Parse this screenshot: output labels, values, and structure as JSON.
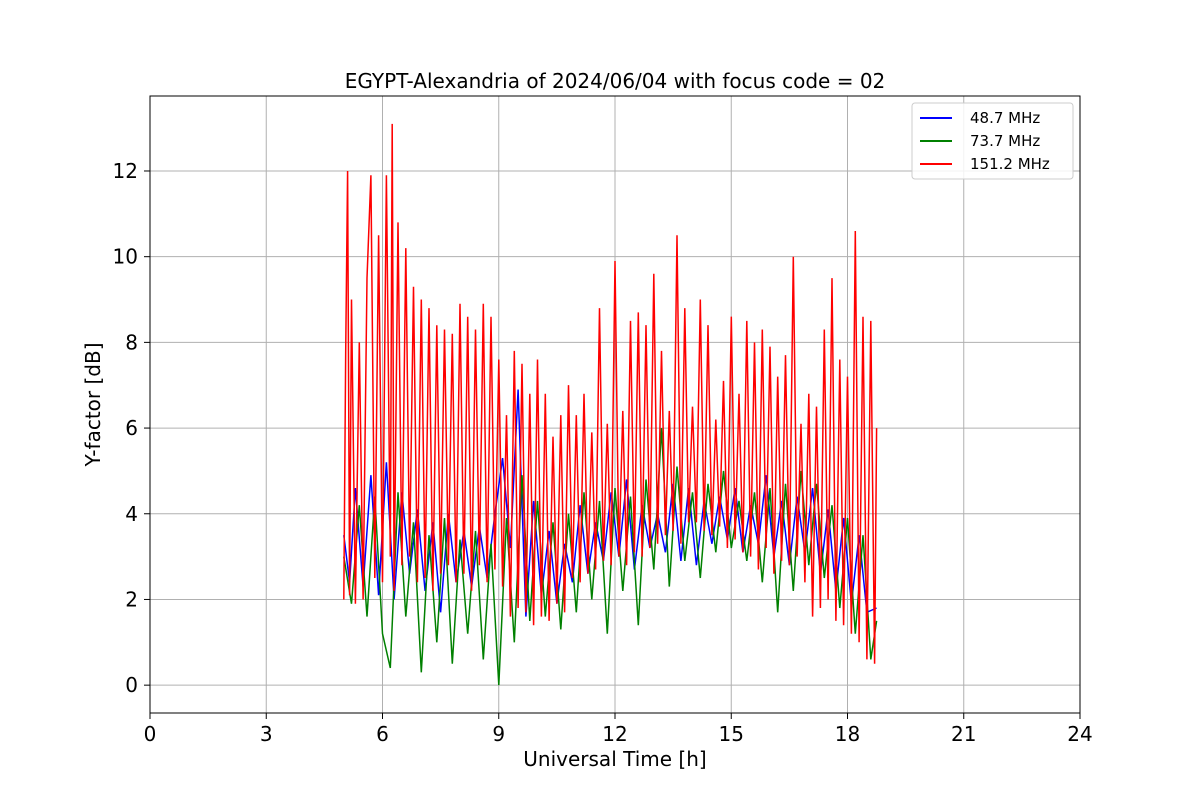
{
  "chart_data": {
    "type": "line",
    "title": "EGYPT-Alexandria of 2024/06/04 with focus code = 02",
    "xlabel": "Universal Time [h]",
    "ylabel": "Y-factor [dB]",
    "xlim": [
      0,
      24
    ],
    "ylim": [
      -0.65,
      13.75
    ],
    "xticks": [
      0,
      3,
      6,
      9,
      12,
      15,
      18,
      21,
      24
    ],
    "yticks": [
      0,
      2,
      4,
      6,
      8,
      10,
      12
    ],
    "grid": true,
    "legend_position": "top-right",
    "series": [
      {
        "name": "48.7 MHz",
        "color": "#0000ff",
        "x": [
          5.0,
          5.15,
          5.3,
          5.5,
          5.7,
          5.9,
          6.1,
          6.3,
          6.5,
          6.7,
          6.9,
          7.1,
          7.3,
          7.5,
          7.7,
          7.9,
          8.1,
          8.3,
          8.5,
          8.7,
          8.9,
          9.1,
          9.3,
          9.5,
          9.7,
          9.9,
          10.1,
          10.3,
          10.5,
          10.7,
          10.9,
          11.1,
          11.3,
          11.5,
          11.7,
          11.9,
          12.1,
          12.3,
          12.5,
          12.7,
          12.9,
          13.1,
          13.3,
          13.5,
          13.7,
          13.9,
          14.1,
          14.3,
          14.5,
          14.7,
          14.9,
          15.1,
          15.3,
          15.5,
          15.7,
          15.9,
          16.1,
          16.3,
          16.5,
          16.7,
          16.9,
          17.1,
          17.3,
          17.5,
          17.7,
          17.9,
          18.1,
          18.3,
          18.5,
          18.75
        ],
        "values": [
          3.5,
          2.4,
          4.6,
          2.3,
          4.9,
          2.1,
          5.2,
          2.0,
          4.5,
          2.6,
          4.1,
          2.2,
          3.8,
          1.7,
          4.0,
          2.4,
          3.6,
          2.3,
          3.7,
          2.5,
          4.0,
          5.3,
          3.2,
          6.9,
          1.6,
          4.3,
          2.1,
          3.6,
          1.9,
          3.3,
          2.4,
          4.2,
          2.6,
          3.8,
          2.9,
          4.5,
          3.0,
          4.8,
          2.7,
          4.2,
          3.2,
          4.0,
          3.1,
          4.7,
          2.9,
          4.6,
          2.8,
          4.3,
          3.3,
          4.4,
          3.4,
          4.6,
          3.1,
          4.2,
          3.3,
          4.9,
          3.0,
          4.3,
          2.8,
          4.4,
          3.1,
          4.6,
          2.6,
          4.1,
          2.2,
          3.9,
          1.9,
          3.5,
          1.7,
          1.8
        ]
      },
      {
        "name": "73.7 MHz",
        "color": "#008000",
        "x": [
          5.0,
          5.2,
          5.4,
          5.6,
          5.8,
          6.0,
          6.2,
          6.4,
          6.6,
          6.8,
          7.0,
          7.2,
          7.4,
          7.6,
          7.8,
          8.0,
          8.2,
          8.4,
          8.6,
          8.8,
          9.0,
          9.2,
          9.4,
          9.6,
          9.8,
          10.0,
          10.2,
          10.4,
          10.6,
          10.8,
          11.0,
          11.2,
          11.4,
          11.6,
          11.8,
          12.0,
          12.2,
          12.4,
          12.6,
          12.8,
          13.0,
          13.2,
          13.4,
          13.6,
          13.8,
          14.0,
          14.2,
          14.4,
          14.6,
          14.8,
          15.0,
          15.2,
          15.4,
          15.6,
          15.8,
          16.0,
          16.2,
          16.4,
          16.6,
          16.8,
          17.0,
          17.2,
          17.4,
          17.6,
          17.8,
          18.0,
          18.2,
          18.4,
          18.6,
          18.75
        ],
        "values": [
          3.0,
          1.9,
          4.2,
          1.6,
          4.4,
          1.2,
          0.4,
          4.5,
          1.6,
          3.8,
          0.3,
          3.5,
          1.0,
          3.9,
          0.5,
          3.4,
          1.2,
          3.6,
          0.6,
          3.3,
          0.0,
          3.9,
          1.0,
          4.9,
          1.5,
          4.3,
          1.6,
          3.8,
          1.3,
          4.0,
          1.7,
          4.5,
          2.0,
          4.3,
          1.2,
          4.6,
          2.2,
          4.4,
          1.4,
          4.8,
          2.7,
          6.0,
          2.3,
          5.1,
          2.9,
          4.5,
          2.5,
          4.7,
          3.1,
          5.0,
          3.2,
          4.3,
          2.9,
          4.5,
          2.4,
          4.6,
          1.7,
          4.7,
          2.2,
          5.0,
          2.8,
          4.7,
          2.5,
          4.2,
          1.8,
          3.9,
          1.2,
          3.5,
          0.6,
          1.5
        ]
      },
      {
        "name": "151.2 MHz",
        "color": "#ff0000",
        "x": [
          5.0,
          5.05,
          5.1,
          5.15,
          5.2,
          5.3,
          5.4,
          5.5,
          5.6,
          5.7,
          5.8,
          5.9,
          6.0,
          6.1,
          6.2,
          6.25,
          6.3,
          6.4,
          6.5,
          6.6,
          6.7,
          6.8,
          6.9,
          7.0,
          7.1,
          7.2,
          7.3,
          7.4,
          7.5,
          7.6,
          7.7,
          7.8,
          7.9,
          8.0,
          8.1,
          8.2,
          8.3,
          8.4,
          8.5,
          8.6,
          8.7,
          8.8,
          8.9,
          9.0,
          9.1,
          9.2,
          9.3,
          9.4,
          9.5,
          9.6,
          9.7,
          9.8,
          9.9,
          10.0,
          10.1,
          10.2,
          10.3,
          10.4,
          10.5,
          10.6,
          10.7,
          10.8,
          10.9,
          11.0,
          11.1,
          11.2,
          11.3,
          11.4,
          11.5,
          11.6,
          11.7,
          11.8,
          11.9,
          12.0,
          12.1,
          12.2,
          12.3,
          12.4,
          12.5,
          12.6,
          12.7,
          12.8,
          12.9,
          13.0,
          13.1,
          13.2,
          13.3,
          13.4,
          13.5,
          13.6,
          13.7,
          13.8,
          13.9,
          14.0,
          14.1,
          14.2,
          14.3,
          14.4,
          14.5,
          14.6,
          14.7,
          14.8,
          14.9,
          15.0,
          15.1,
          15.2,
          15.3,
          15.4,
          15.5,
          15.6,
          15.7,
          15.8,
          15.9,
          16.0,
          16.1,
          16.2,
          16.3,
          16.4,
          16.5,
          16.6,
          16.7,
          16.8,
          16.9,
          17.0,
          17.1,
          17.2,
          17.3,
          17.4,
          17.5,
          17.6,
          17.7,
          17.8,
          17.9,
          18.0,
          18.1,
          18.2,
          18.3,
          18.4,
          18.5,
          18.6,
          18.7,
          18.75
        ],
        "values": [
          2.0,
          7.8,
          12.0,
          2.1,
          9.0,
          1.9,
          8.0,
          2.0,
          9.5,
          11.9,
          2.5,
          10.5,
          2.4,
          11.9,
          3.0,
          13.1,
          2.2,
          10.8,
          2.8,
          10.2,
          3.0,
          9.3,
          2.4,
          9.0,
          2.5,
          8.8,
          2.2,
          8.4,
          2.6,
          8.3,
          2.8,
          8.2,
          2.4,
          8.9,
          2.6,
          8.6,
          2.2,
          8.3,
          2.8,
          8.9,
          2.4,
          8.6,
          2.7,
          7.6,
          2.3,
          6.3,
          1.6,
          7.8,
          1.8,
          7.5,
          1.7,
          6.8,
          1.4,
          7.6,
          1.6,
          6.8,
          1.5,
          5.8,
          1.9,
          6.3,
          1.7,
          7.0,
          2.5,
          6.3,
          2.4,
          6.8,
          2.6,
          5.9,
          2.7,
          8.8,
          2.9,
          6.1,
          2.8,
          9.9,
          3.0,
          6.4,
          2.8,
          8.5,
          3.1,
          8.7,
          3.0,
          8.4,
          3.2,
          9.6,
          3.3,
          7.8,
          3.5,
          6.4,
          3.6,
          10.5,
          3.3,
          8.8,
          3.8,
          6.5,
          3.8,
          9.0,
          3.6,
          8.4,
          3.5,
          6.2,
          3.7,
          7.1,
          3.2,
          8.6,
          3.4,
          6.8,
          3.1,
          8.5,
          3.0,
          8.0,
          2.7,
          8.3,
          3.2,
          7.9,
          2.6,
          7.2,
          2.9,
          7.7,
          2.8,
          10.0,
          3.0,
          6.1,
          2.4,
          6.8,
          1.6,
          6.5,
          1.8,
          8.3,
          2.0,
          9.5,
          1.5,
          7.6,
          1.4,
          7.2,
          1.2,
          10.6,
          1.0,
          8.6,
          0.6,
          8.5,
          0.5,
          6.0
        ]
      }
    ]
  }
}
